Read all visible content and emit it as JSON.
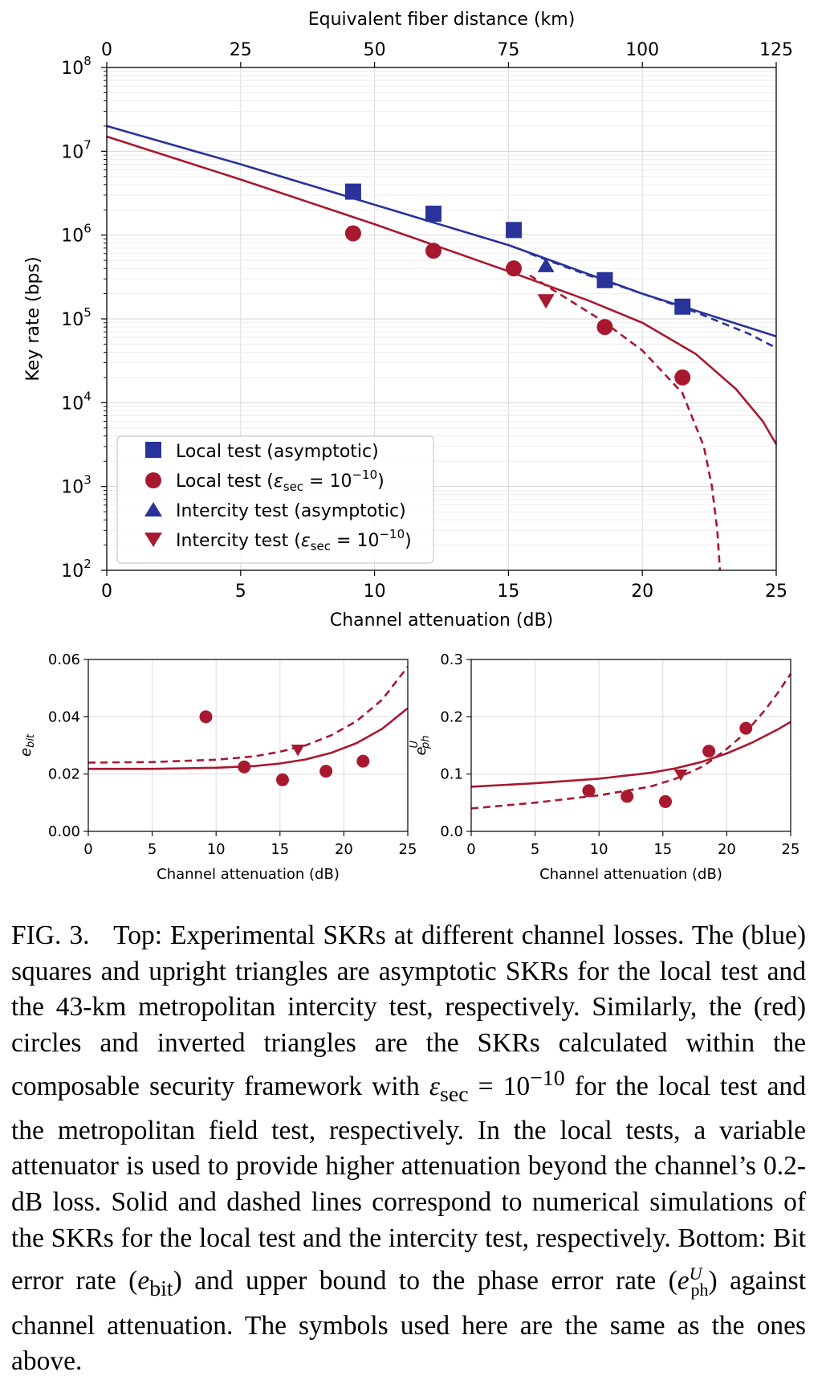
{
  "chart_data": [
    {
      "type": "scatter",
      "panel": "top",
      "xlabel": "Channel attenuation (dB)",
      "ylabel": "Key rate (bps)",
      "x2label": "Equivalent fiber distance (km)",
      "xlim": [
        0,
        25
      ],
      "x2lim": [
        0,
        125
      ],
      "ylim": [
        100,
        100000000
      ],
      "yscale": "log",
      "grid": true,
      "legend_placement": "lower-left",
      "xticks": [
        "0",
        "5",
        "10",
        "15",
        "20",
        "25"
      ],
      "x2ticks": [
        "0",
        "25",
        "50",
        "75",
        "100",
        "125"
      ],
      "yticks": [
        {
          "base": "10",
          "exp": "2"
        },
        {
          "base": "10",
          "exp": "3"
        },
        {
          "base": "10",
          "exp": "4"
        },
        {
          "base": "10",
          "exp": "5"
        },
        {
          "base": "10",
          "exp": "6"
        },
        {
          "base": "10",
          "exp": "7"
        },
        {
          "base": "10",
          "exp": "8"
        }
      ],
      "series": [
        {
          "name": "Local test (asymptotic)",
          "marker": "square",
          "color": "#29339a",
          "x": [
            9.2,
            12.2,
            15.2,
            18.6,
            21.5
          ],
          "y": [
            3300000,
            1800000,
            1150000,
            290000,
            140000
          ]
        },
        {
          "name_main": "Local test (",
          "name_sym": "ε",
          "name_sub": "sec",
          "name_mid": " = 10",
          "name_sup": "−10",
          "name_end": ")",
          "marker": "circle",
          "color": "#a8192f",
          "x": [
            9.2,
            12.2,
            15.2,
            18.6,
            21.5
          ],
          "y": [
            1050000,
            650000,
            400000,
            80000,
            20000
          ]
        },
        {
          "name": "Intercity test (asymptotic)",
          "marker": "triangle-up",
          "color": "#29339a",
          "x": [
            16.4
          ],
          "y": [
            430000
          ]
        },
        {
          "name_main": "Intercity test (",
          "name_sym": "ε",
          "name_sub": "sec",
          "name_mid": " = 10",
          "name_sup": "−10",
          "name_end": ")",
          "marker": "triangle-down",
          "color": "#a8192f",
          "x": [
            16.4
          ],
          "y": [
            165000
          ]
        }
      ],
      "lines": [
        {
          "style": "solid",
          "color": "#29339a",
          "x": [
            0,
            5,
            10,
            15,
            20,
            25
          ],
          "y": [
            20000000,
            7000000,
            2300000,
            760000,
            200000,
            62000
          ]
        },
        {
          "style": "solid",
          "color": "#a8192f",
          "x": [
            0,
            5,
            10,
            15,
            18,
            20,
            22,
            23.5,
            24.5,
            25
          ],
          "y": [
            15000000,
            4600000,
            1350000,
            370000,
            165000,
            90000,
            38000,
            14500,
            6000,
            3200
          ]
        },
        {
          "style": "dashed",
          "color": "#29339a",
          "x": [
            15.8,
            18,
            20,
            22,
            24,
            25
          ],
          "y": [
            600000,
            330000,
            200000,
            120000,
            66000,
            45000
          ]
        },
        {
          "style": "dashed",
          "color": "#a8192f",
          "x": [
            15.8,
            17,
            18.5,
            20,
            21.5,
            22.3,
            22.6,
            22.8,
            22.9
          ],
          "y": [
            330000,
            190000,
            95000,
            42000,
            13000,
            3000,
            1000,
            300,
            100
          ]
        }
      ]
    },
    {
      "type": "scatter",
      "panel": "bottom-left",
      "xlabel": "Channel attenuation (dB)",
      "ylabel_base": "e",
      "ylabel_sub": "bit",
      "xlim": [
        0,
        25
      ],
      "ylim": [
        0,
        0.06
      ],
      "xticks": [
        "0",
        "5",
        "10",
        "15",
        "20",
        "25"
      ],
      "yticks": [
        "0.00",
        "0.02",
        "0.04",
        "0.06"
      ],
      "grid": true,
      "series": [
        {
          "marker": "circle",
          "color": "#a8192f",
          "x": [
            9.2,
            12.2,
            15.2,
            18.6,
            21.5
          ],
          "y": [
            0.04,
            0.0225,
            0.018,
            0.021,
            0.0245
          ]
        },
        {
          "marker": "triangle-down",
          "color": "#a8192f",
          "x": [
            16.4
          ],
          "y": [
            0.0285
          ]
        }
      ],
      "lines": [
        {
          "style": "solid",
          "color": "#a8192f",
          "x": [
            0,
            5,
            10,
            13,
            15,
            17,
            19,
            21,
            23,
            25
          ],
          "y": [
            0.0218,
            0.0218,
            0.0222,
            0.0228,
            0.0237,
            0.0251,
            0.0274,
            0.0308,
            0.0358,
            0.043
          ]
        },
        {
          "style": "dashed",
          "color": "#a8192f",
          "x": [
            0,
            5,
            10,
            13,
            15,
            17,
            19,
            21,
            23,
            25
          ],
          "y": [
            0.024,
            0.0242,
            0.025,
            0.0262,
            0.0278,
            0.03,
            0.0335,
            0.0385,
            0.046,
            0.0575
          ]
        }
      ]
    },
    {
      "type": "scatter",
      "panel": "bottom-right",
      "xlabel": "Channel attenuation (dB)",
      "ylabel_base": "e",
      "ylabel_sub": "ph",
      "ylabel_sup": "U",
      "xlim": [
        0,
        25
      ],
      "ylim": [
        0,
        0.3
      ],
      "xticks": [
        "0",
        "5",
        "10",
        "15",
        "20",
        "25"
      ],
      "yticks": [
        "0.0",
        "0.1",
        "0.2",
        "0.3"
      ],
      "grid": true,
      "series": [
        {
          "marker": "circle",
          "color": "#a8192f",
          "x": [
            9.2,
            12.2,
            15.2,
            18.6,
            21.5
          ],
          "y": [
            0.071,
            0.061,
            0.052,
            0.14,
            0.18
          ]
        },
        {
          "marker": "triangle-down",
          "color": "#a8192f",
          "x": [
            16.4
          ],
          "y": [
            0.099
          ]
        }
      ],
      "lines": [
        {
          "style": "solid",
          "color": "#a8192f",
          "x": [
            0,
            5,
            10,
            14,
            16,
            18,
            20,
            22,
            24,
            25
          ],
          "y": [
            0.078,
            0.084,
            0.092,
            0.102,
            0.11,
            0.121,
            0.136,
            0.155,
            0.178,
            0.191
          ]
        },
        {
          "style": "dashed",
          "color": "#a8192f",
          "x": [
            0,
            5,
            10,
            14,
            16,
            18,
            19,
            20,
            21,
            22,
            23,
            24,
            25
          ],
          "y": [
            0.04,
            0.05,
            0.063,
            0.078,
            0.092,
            0.112,
            0.127,
            0.144,
            0.163,
            0.186,
            0.212,
            0.242,
            0.275
          ]
        }
      ]
    }
  ],
  "caption": {
    "label": "FIG. 3.",
    "t1": "Top: Experimental SKRs at different channel losses. The (blue) squares and upright triangles are asymptotic SKRs for the local test and the 43-km metropolitan intercity test, respectively. Similarly, the (red) circles and inverted triangles are the SKRs calculated within the composable security framework with ",
    "eps": "ε",
    "eps_sub": "sec",
    "eq": " = 10",
    "eq_sup": "−10",
    "t2": " for the local test and the metropolitan field test, respectively. In the local tests, a variable attenuator is used to provide higher attenuation beyond the channel’s 0.2-dB loss. Solid and dashed lines correspond to numerical simulations of the SKRs for the local test and the intercity test, respectively. Bottom: Bit error rate (",
    "ebit": "e",
    "ebit_sub": "bit",
    "t3": ") and upper bound to the phase error rate (",
    "eph": "e",
    "eph_sub": "ph",
    "eph_sup": "U",
    "t4": ") against channel attenuation. The symbols used here are the same as the ones above."
  }
}
